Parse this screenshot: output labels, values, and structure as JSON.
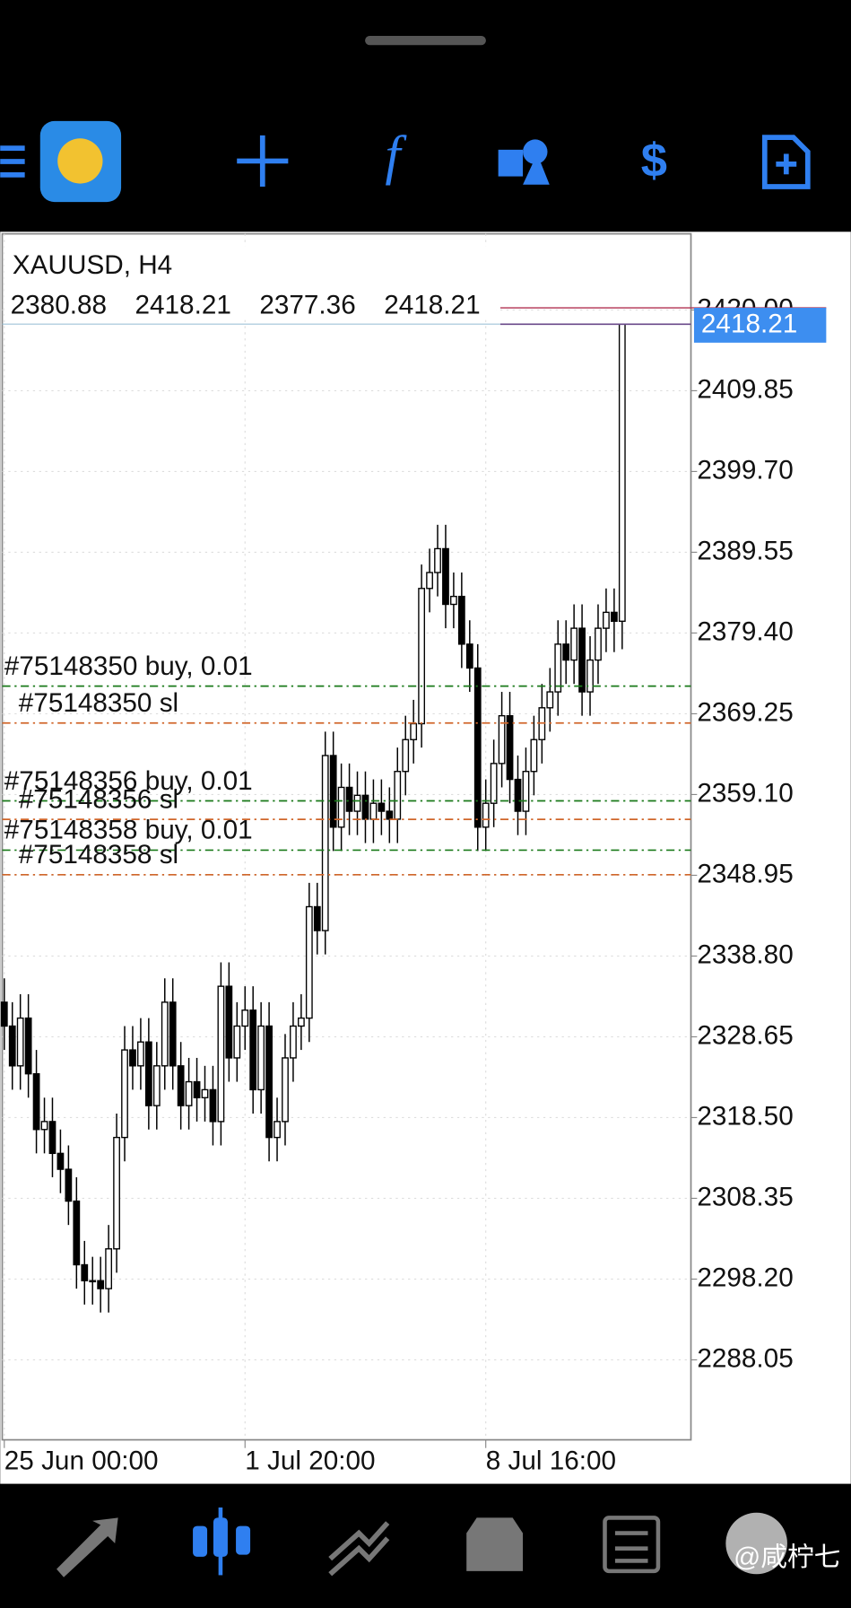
{
  "chart_data": {
    "type": "candlestick",
    "title": "XAUUSD, H4",
    "categories": [
      "25 Jun 00:00",
      null,
      null,
      null,
      null,
      null,
      null,
      null,
      null,
      null,
      null,
      null,
      null,
      null,
      null,
      null,
      null,
      null,
      null,
      null,
      null,
      null,
      null,
      null,
      null,
      null,
      null,
      null,
      null,
      null,
      "1 Jul 20:00",
      null,
      null,
      null,
      null,
      null,
      null,
      null,
      null,
      null,
      null,
      null,
      null,
      null,
      null,
      null,
      null,
      null,
      null,
      null,
      null,
      null,
      null,
      null,
      null,
      null,
      null,
      null,
      null,
      null,
      "8 Jul 16:00",
      null,
      null,
      null,
      null,
      null,
      null,
      null,
      null,
      null,
      null,
      null,
      null,
      null,
      null,
      null,
      null,
      null
    ],
    "open": [
      2333,
      2330,
      2325,
      2331,
      2324,
      2317,
      2318,
      2314,
      2312,
      2308,
      2300,
      2298,
      2298,
      2297,
      2302,
      2316,
      2327,
      2325,
      2328,
      2320,
      2325,
      2333,
      2325,
      2320,
      2323,
      2321,
      2322,
      2318,
      2335,
      2326,
      2330,
      2332,
      2322,
      2330,
      2316,
      2318,
      2326,
      2330,
      2331,
      2345,
      2342,
      2364,
      2355,
      2360,
      2357,
      2359,
      2356,
      2358,
      2357,
      2356,
      2362,
      2366,
      2368,
      2385,
      2387,
      2390,
      2383,
      2384,
      2378,
      2375,
      2355,
      2358,
      2363,
      2369,
      2361,
      2357,
      2362,
      2366,
      2370,
      2372,
      2378,
      2376,
      2380,
      2372,
      2376,
      2380,
      2382,
      2380.88
    ],
    "high": [
      2336,
      2333,
      2334,
      2334,
      2327,
      2321,
      2321,
      2317,
      2315,
      2311,
      2303,
      2301,
      2301,
      2305,
      2319,
      2330,
      2330,
      2331,
      2331,
      2328,
      2336,
      2336,
      2328,
      2326,
      2326,
      2325,
      2325,
      2338,
      2338,
      2333,
      2335,
      2335,
      2333,
      2333,
      2321,
      2329,
      2333,
      2334,
      2348,
      2348,
      2367,
      2367,
      2363,
      2363,
      2362,
      2362,
      2361,
      2361,
      2360,
      2365,
      2369,
      2371,
      2388,
      2390,
      2393,
      2393,
      2387,
      2387,
      2381,
      2378,
      2361,
      2366,
      2372,
      2372,
      2364,
      2365,
      2369,
      2373,
      2375,
      2381,
      2381,
      2383,
      2383,
      2379,
      2383,
      2385,
      2385,
      2418.21
    ],
    "low": [
      2327,
      2322,
      2322,
      2321,
      2314,
      2314,
      2311,
      2309,
      2305,
      2297,
      2295,
      2295,
      2294,
      2294,
      2299,
      2313,
      2322,
      2322,
      2317,
      2317,
      2322,
      2322,
      2317,
      2317,
      2318,
      2318,
      2315,
      2315,
      2323,
      2323,
      2327,
      2319,
      2319,
      2313,
      2313,
      2315,
      2323,
      2327,
      2328,
      2339,
      2339,
      2352,
      2352,
      2354,
      2354,
      2353,
      2353,
      2354,
      2353,
      2353,
      2359,
      2363,
      2365,
      2382,
      2384,
      2380,
      2380,
      2375,
      2372,
      2352,
      2352,
      2355,
      2360,
      2358,
      2354,
      2354,
      2359,
      2363,
      2367,
      2369,
      2373,
      2373,
      2369,
      2369,
      2373,
      2377,
      2377,
      2377.36
    ],
    "close": [
      2330,
      2325,
      2331,
      2324,
      2317,
      2318,
      2314,
      2312,
      2308,
      2300,
      2298,
      2298,
      2297,
      2302,
      2316,
      2327,
      2325,
      2328,
      2320,
      2325,
      2333,
      2325,
      2320,
      2323,
      2321,
      2322,
      2318,
      2335,
      2326,
      2330,
      2332,
      2322,
      2330,
      2316,
      2318,
      2326,
      2330,
      2331,
      2345,
      2342,
      2364,
      2355,
      2360,
      2357,
      2359,
      2356,
      2358,
      2357,
      2356,
      2362,
      2366,
      2368,
      2385,
      2387,
      2390,
      2383,
      2384,
      2378,
      2375,
      2355,
      2358,
      2363,
      2369,
      2361,
      2357,
      2362,
      2366,
      2370,
      2372,
      2378,
      2376,
      2380,
      2372,
      2376,
      2380,
      2382,
      2380.88,
      2418.21
    ],
    "ylim": [
      2278.0,
      2429.57
    ],
    "yticks": [
      {
        "value": 2420.0,
        "label": "2420.00"
      },
      {
        "value": 2409.85,
        "label": "2409.85"
      },
      {
        "value": 2399.7,
        "label": "2399.70"
      },
      {
        "value": 2389.55,
        "label": "2389.55"
      },
      {
        "value": 2379.4,
        "label": "2379.40"
      },
      {
        "value": 2369.25,
        "label": "2369.25"
      },
      {
        "value": 2359.1,
        "label": "2359.10"
      },
      {
        "value": 2348.95,
        "label": "2348.95"
      },
      {
        "value": 2338.8,
        "label": "2338.80"
      },
      {
        "value": 2328.65,
        "label": "2328.65"
      },
      {
        "value": 2318.5,
        "label": "2318.50"
      },
      {
        "value": 2308.35,
        "label": "2308.35"
      },
      {
        "value": 2298.2,
        "label": "2298.20"
      },
      {
        "value": 2288.05,
        "label": "2288.05"
      }
    ],
    "grid": true,
    "up_color": "#ffffff",
    "down_color": "#000000",
    "orders": [
      {
        "label": "#75148350 buy, 0.01",
        "level": 2372.73,
        "color": "#1a7a1a"
      },
      {
        "label": "#75148350 sl",
        "level": 2368.09,
        "color": "#d0662a"
      },
      {
        "label": "#75148356 buy, 0.01",
        "level": 2358.3,
        "color": "#1a7a1a"
      },
      {
        "label": "#75148356 sl",
        "level": 2355.98,
        "color": "#d0662a"
      },
      {
        "label": "#75148358 buy, 0.01",
        "level": 2352.11,
        "color": "#1a7a1a"
      },
      {
        "label": "#75148358 sl",
        "level": 2349.02,
        "color": "#d0662a"
      }
    ]
  },
  "watermark": "@咸柠七"
}
